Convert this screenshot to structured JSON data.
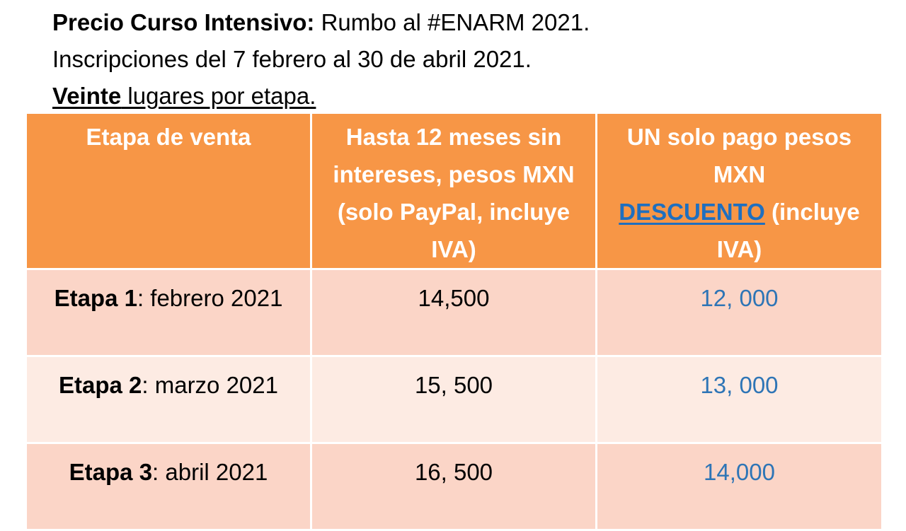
{
  "header": {
    "line1_bold": "Precio Curso Intensivo:",
    "line1_rest": " Rumbo al #ENARM 2021.",
    "line2": "Inscripciones del 7 febrero al 30 de abril 2021.",
    "line3_bold": "Veinte",
    "line3_rest": " lugares por etapa."
  },
  "table": {
    "headers": {
      "col1": "Etapa de venta",
      "col2": "Hasta 12 meses sin intereses, pesos MXN (solo PayPal, incluye IVA)",
      "col3_part1": "UN solo pago pesos MXN",
      "col3_link": "DESCUENTO",
      "col3_part2": " (incluye IVA)"
    },
    "rows": [
      {
        "stage": "Etapa 1",
        "period": ": febrero 2021",
        "installments": "14,500",
        "single_payment": "12, 000"
      },
      {
        "stage": "Etapa 2",
        "period": ": marzo 2021",
        "installments": "15, 500",
        "single_payment": "13, 000"
      },
      {
        "stage": "Etapa 3",
        "period": ": abril 2021",
        "installments": "16, 500",
        "single_payment": "14,000"
      }
    ]
  },
  "colors": {
    "header_background": "#f79646",
    "row_odd_background": "#fbd5c7",
    "row_even_background": "#fdebe3",
    "discount_value": "#2e75b6",
    "link": "#1f6fbf"
  }
}
